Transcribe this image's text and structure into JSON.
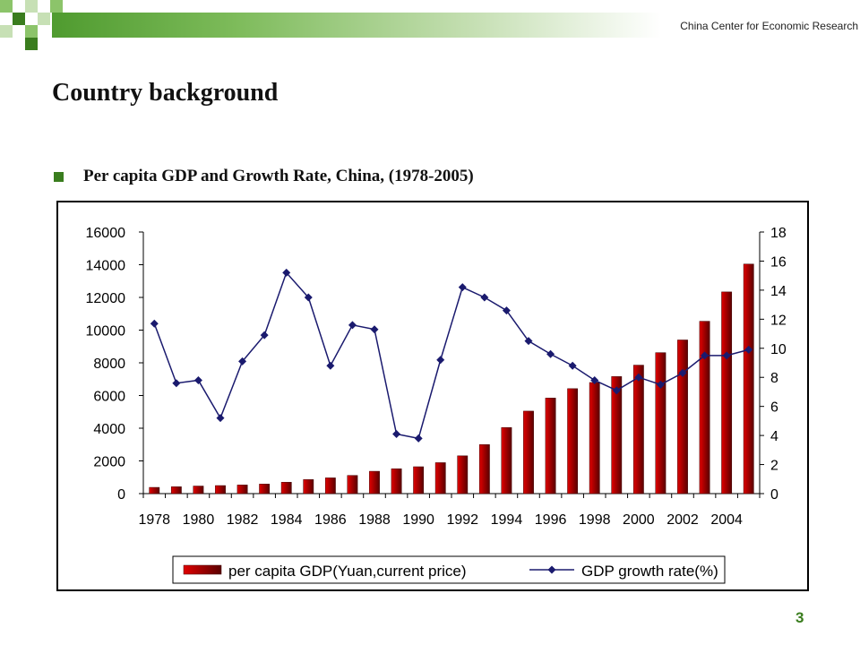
{
  "header": {
    "org_name": "China Center  for Economic Research",
    "colors": {
      "dark_green": "#3a7d1e",
      "light_green": "#8cc46a"
    }
  },
  "slide": {
    "title": "Country background",
    "bullet": "Per capita GDP and Growth Rate, China, (1978-2005)",
    "page_number": "3"
  },
  "chart_data": {
    "type": "bar",
    "x": [
      1978,
      1979,
      1980,
      1981,
      1982,
      1983,
      1984,
      1985,
      1986,
      1987,
      1988,
      1989,
      1990,
      1991,
      1992,
      1993,
      1994,
      1995,
      1996,
      1997,
      1998,
      1999,
      2000,
      2001,
      2002,
      2003,
      2004,
      2005
    ],
    "x_tick_labels": [
      "1978",
      "1980",
      "1982",
      "1984",
      "1986",
      "1988",
      "1990",
      "1992",
      "1994",
      "1996",
      "1998",
      "2000",
      "2002",
      "2004"
    ],
    "series": [
      {
        "name": "per capita GDP(Yuan,current price)",
        "type": "bar",
        "axis": "left",
        "color": "#d40000",
        "values": [
          381,
          419,
          463,
          492,
          528,
          583,
          695,
          858,
          963,
          1112,
          1366,
          1519,
          1644,
          1893,
          2311,
          2998,
          4044,
          5046,
          5846,
          6420,
          6796,
          7159,
          7858,
          8622,
          9398,
          10542,
          12336,
          14040
        ]
      },
      {
        "name": "GDP growth rate(%)",
        "type": "line",
        "axis": "right",
        "color": "#1a1a6e",
        "values": [
          11.7,
          7.6,
          7.8,
          5.2,
          9.1,
          10.9,
          15.2,
          13.5,
          8.8,
          11.6,
          11.3,
          4.1,
          3.8,
          9.2,
          14.2,
          13.5,
          12.6,
          10.5,
          9.6,
          8.8,
          7.8,
          7.1,
          8.0,
          7.5,
          8.3,
          9.5,
          9.5,
          9.9
        ]
      }
    ],
    "y_left": {
      "min": 0,
      "max": 16000,
      "ticks": [
        0,
        2000,
        4000,
        6000,
        8000,
        10000,
        12000,
        14000,
        16000
      ]
    },
    "y_right": {
      "min": 0,
      "max": 18,
      "ticks": [
        0,
        2,
        4,
        6,
        8,
        10,
        12,
        14,
        16,
        18
      ]
    },
    "grid": false,
    "legend_position": "bottom"
  }
}
